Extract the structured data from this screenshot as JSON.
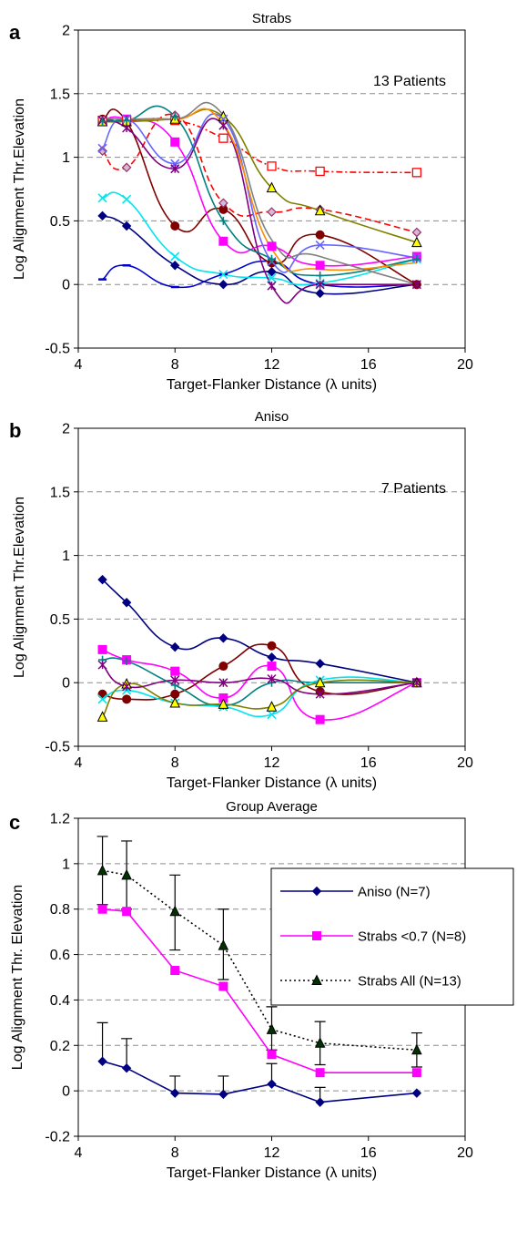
{
  "colors": {
    "grid": "#8c8c8c",
    "aniso": "#000080",
    "strabs07": "#ff00ff",
    "strabsAll": "#000000",
    "strabsAllMarker": "#003300"
  },
  "chart_data": [
    {
      "type": "line",
      "panel": "a",
      "title": "Strabs",
      "annotation": "13 Patients",
      "xlabel": "Target-Flanker Distance (λ units)",
      "ylabel": "Log Alignment Thr.Elevation",
      "xlim": [
        4,
        20
      ],
      "ylim": [
        -0.5,
        2
      ],
      "xticks": [
        4,
        8,
        12,
        16,
        20
      ],
      "yticks": [
        -0.5,
        0,
        0.5,
        1,
        1.5,
        2
      ],
      "ytick_labels": [
        "-0.5",
        "0",
        "0.5",
        "1",
        "1.5",
        "2"
      ],
      "grid": "horizontal dashed",
      "series": [
        {
          "color": "#000080",
          "marker": "diamond",
          "x": [
            5,
            6,
            8,
            10,
            12,
            14,
            18
          ],
          "y": [
            0.54,
            0.46,
            0.15,
            0.0,
            0.1,
            -0.07,
            0.0
          ]
        },
        {
          "color": "#0000cc",
          "marker": "dash",
          "x": [
            5,
            6,
            8,
            10,
            12,
            14,
            18
          ],
          "y": [
            0.04,
            0.15,
            -0.02,
            0.08,
            0.18,
            0.0,
            0.0
          ]
        },
        {
          "color": "#00e5ee",
          "marker": "x",
          "x": [
            5,
            6,
            8,
            10,
            12,
            14,
            18
          ],
          "y": [
            0.68,
            0.67,
            0.22,
            0.08,
            0.05,
            0.01,
            0.2
          ]
        },
        {
          "color": "#800000",
          "marker": "circle",
          "x": [
            5,
            6,
            8,
            10,
            12,
            14,
            18
          ],
          "y": [
            1.3,
            1.28,
            0.46,
            0.59,
            0.17,
            0.39,
            0.0
          ]
        },
        {
          "color": "#ff00ff",
          "marker": "square",
          "x": [
            5,
            6,
            8,
            10,
            12,
            14,
            18
          ],
          "y": [
            1.29,
            1.3,
            1.12,
            0.34,
            0.3,
            0.15,
            0.22
          ]
        },
        {
          "color": "#ff0000",
          "marker": "open-square",
          "dash": "dash-dot",
          "x": [
            5,
            6,
            8,
            10,
            12,
            14,
            18
          ],
          "y": [
            1.29,
            1.29,
            1.29,
            1.15,
            0.93,
            0.89,
            0.88
          ]
        },
        {
          "color": "#ff0000",
          "marker": "open-diamond",
          "dash": "dashed",
          "x": [
            5,
            6,
            8,
            10,
            12,
            14,
            18
          ],
          "y": [
            1.05,
            0.92,
            1.33,
            0.64,
            0.57,
            0.59,
            0.41
          ]
        },
        {
          "color": "#808000",
          "marker": "triangle",
          "x": [
            5,
            6,
            8,
            10,
            12,
            14,
            18
          ],
          "y": [
            1.28,
            1.28,
            1.3,
            1.32,
            0.76,
            0.58,
            0.33
          ]
        },
        {
          "color": "#6666ff",
          "marker": "x",
          "x": [
            5,
            6,
            8,
            10,
            12,
            14,
            18
          ],
          "y": [
            1.07,
            1.3,
            0.95,
            1.3,
            0.18,
            0.31,
            0.21
          ]
        },
        {
          "color": "#800080",
          "marker": "asterisk",
          "x": [
            5,
            6,
            8,
            10,
            12,
            14,
            18
          ],
          "y": [
            1.29,
            1.23,
            0.91,
            1.25,
            -0.01,
            0.0,
            0.0
          ]
        },
        {
          "color": "#008080",
          "marker": "plus",
          "x": [
            5,
            6,
            8,
            10,
            12,
            14,
            18
          ],
          "y": [
            1.28,
            1.29,
            1.32,
            0.5,
            0.2,
            0.07,
            0.2
          ]
        },
        {
          "color": "#ff8c00",
          "marker": "none",
          "x": [
            5,
            6,
            8,
            10,
            12,
            14,
            18
          ],
          "y": [
            1.3,
            1.3,
            1.3,
            1.26,
            0.28,
            0.12,
            0.17
          ]
        },
        {
          "color": "#808080",
          "marker": "none",
          "x": [
            5,
            6,
            8,
            10,
            12,
            14,
            18
          ],
          "y": [
            1.3,
            1.3,
            1.3,
            1.33,
            0.35,
            0.22,
            0.0
          ]
        }
      ]
    },
    {
      "type": "line",
      "panel": "b",
      "title": "Aniso",
      "annotation": "7 Patients",
      "xlabel": "Target-Flanker Distance (λ units)",
      "ylabel": "Log Alignment Thr.Elevation",
      "xlim": [
        4,
        20
      ],
      "ylim": [
        -0.5,
        2
      ],
      "xticks": [
        4,
        8,
        12,
        16,
        20
      ],
      "yticks": [
        -0.5,
        0,
        0.5,
        1,
        1.5,
        2
      ],
      "ytick_labels": [
        "-0.5",
        "0",
        "0.5",
        "1",
        "1.5",
        "2"
      ],
      "grid": "horizontal dashed",
      "series": [
        {
          "color": "#000080",
          "marker": "diamond",
          "x": [
            5,
            6,
            8,
            10,
            12,
            14,
            18
          ],
          "y": [
            0.81,
            0.63,
            0.28,
            0.35,
            0.2,
            0.15,
            0.0
          ]
        },
        {
          "color": "#ff00ff",
          "marker": "square",
          "x": [
            5,
            6,
            8,
            10,
            12,
            14,
            18
          ],
          "y": [
            0.26,
            0.18,
            0.09,
            -0.12,
            0.13,
            -0.29,
            0.0
          ]
        },
        {
          "color": "#800000",
          "marker": "circle",
          "x": [
            5,
            6,
            8,
            10,
            12,
            14,
            18
          ],
          "y": [
            -0.09,
            -0.13,
            -0.09,
            0.13,
            0.29,
            -0.07,
            0.0
          ]
        },
        {
          "color": "#008080",
          "marker": "plus",
          "x": [
            5,
            6,
            8,
            10,
            12,
            14,
            18
          ],
          "y": [
            0.18,
            0.17,
            -0.02,
            -0.18,
            0.0,
            0.0,
            0.0
          ]
        },
        {
          "color": "#00e5ee",
          "marker": "x",
          "x": [
            5,
            6,
            8,
            10,
            12,
            14,
            18
          ],
          "y": [
            -0.13,
            -0.06,
            -0.16,
            -0.19,
            -0.25,
            0.02,
            0.0
          ]
        },
        {
          "color": "#808000",
          "marker": "triangle",
          "x": [
            5,
            6,
            8,
            10,
            12,
            14,
            18
          ],
          "y": [
            -0.27,
            -0.01,
            -0.16,
            -0.17,
            -0.19,
            0.0,
            0.0
          ]
        },
        {
          "color": "#800080",
          "marker": "asterisk",
          "x": [
            5,
            6,
            8,
            10,
            12,
            14,
            18
          ],
          "y": [
            0.14,
            -0.03,
            0.02,
            0.0,
            0.03,
            -0.09,
            0.0
          ]
        }
      ]
    },
    {
      "type": "line",
      "panel": "c",
      "title": "Group Average",
      "xlabel": "Target-Flanker Distance (λ units)",
      "ylabel": "Log Alignment Thr. Elevation",
      "xlim": [
        4,
        20
      ],
      "ylim": [
        -0.2,
        1.2
      ],
      "xticks": [
        4,
        8,
        12,
        16,
        20
      ],
      "yticks": [
        -0.2,
        0,
        0.2,
        0.4,
        0.6,
        0.8,
        1,
        1.2
      ],
      "ytick_labels": [
        "-0.2",
        "0",
        "0.2",
        "0.4",
        "0.6",
        "0.8",
        "1",
        "1.2"
      ],
      "grid": "horizontal dashed",
      "legend": "top-right",
      "series": [
        {
          "name": "Aniso (N=7)",
          "color": "#000080",
          "marker": "diamond",
          "x": [
            5,
            6,
            8,
            10,
            12,
            14,
            18
          ],
          "y": [
            0.13,
            0.1,
            -0.01,
            -0.015,
            0.03,
            -0.05,
            -0.01
          ],
          "error_upper": [
            0.3,
            0.23,
            0.065,
            0.065,
            0.12,
            0.015,
            null
          ]
        },
        {
          "name": "Strabs <0.7 (N=8)",
          "color": "#ff00ff",
          "marker": "square",
          "x": [
            5,
            6,
            8,
            10,
            12,
            14,
            18
          ],
          "y": [
            0.8,
            0.79,
            0.53,
            0.46,
            0.16,
            0.08,
            0.08
          ]
        },
        {
          "name": "Strabs All (N=13)",
          "color": "#000000",
          "marker": "triangle",
          "dash": "dotted",
          "x": [
            5,
            6,
            8,
            10,
            12,
            14,
            18
          ],
          "y": [
            0.97,
            0.95,
            0.79,
            0.64,
            0.27,
            0.21,
            0.18
          ],
          "error_upper": [
            1.12,
            1.1,
            0.95,
            0.8,
            0.37,
            0.305,
            0.255
          ],
          "error_lower": [
            0.82,
            0.8,
            0.62,
            0.49,
            0.18,
            0.115,
            0.105
          ]
        }
      ]
    }
  ]
}
